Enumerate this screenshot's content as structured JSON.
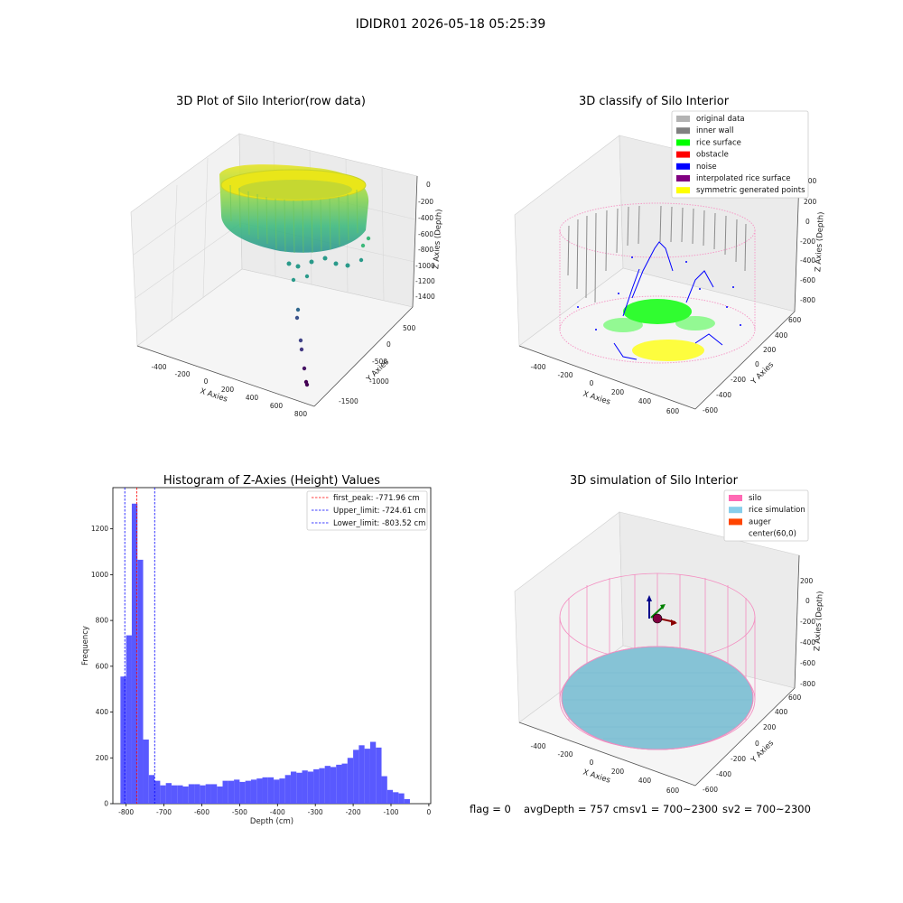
{
  "suptitle": "IDIDR01 2026-05-18 05:25:39",
  "panels": {
    "raw": {
      "title": "3D Plot of Silo Interior(row data)",
      "xlabel": "X Axies",
      "ylabel": "Y Axies",
      "zlabel": "Z Axies (Depth)",
      "xticks": [
        "-400",
        "-200",
        "0",
        "200",
        "400",
        "600",
        "800"
      ],
      "yticks": [
        "-1500",
        "-1000",
        "-500",
        "0",
        "500"
      ],
      "zticks": [
        "0",
        "-200",
        "-400",
        "-600",
        "-800",
        "-1000",
        "-1200",
        "-1400"
      ]
    },
    "classify": {
      "title": "3D classify of Silo Interior",
      "xlabel": "X Axies",
      "ylabel": "Y Axies",
      "zlabel": "Z Axies (Depth)",
      "xticks": [
        "-400",
        "-200",
        "0",
        "200",
        "400",
        "600"
      ],
      "yticks": [
        "-600",
        "-400",
        "-200",
        "0",
        "200",
        "400",
        "600"
      ],
      "zticks": [
        "400",
        "200",
        "0",
        "-200",
        "-400",
        "-600",
        "-800"
      ],
      "legend": [
        {
          "label": "original data",
          "color": "#b3b3b3"
        },
        {
          "label": "inner wall",
          "color": "#808080"
        },
        {
          "label": "rice surface",
          "color": "#00ff00"
        },
        {
          "label": "obstacle",
          "color": "#ff0000"
        },
        {
          "label": "noise",
          "color": "#0000ff"
        },
        {
          "label": "interpolated rice surface",
          "color": "#800080"
        },
        {
          "label": "symmetric generated points",
          "color": "#ffff00"
        }
      ]
    },
    "simulation": {
      "title": "3D simulation of Silo Interior",
      "xlabel": "X Axies",
      "ylabel": "Y Axies",
      "zlabel": "Z Axies (Depth)",
      "xticks": [
        "-400",
        "-200",
        "0",
        "200",
        "400",
        "600"
      ],
      "yticks": [
        "-600",
        "-400",
        "-200",
        "0",
        "200",
        "400",
        "600"
      ],
      "zticks": [
        "200",
        "0",
        "-200",
        "-400",
        "-600",
        "-800"
      ],
      "legend": [
        {
          "label": "silo",
          "color": "#ff69b4"
        },
        {
          "label": "rice simulation",
          "color": "#87ceeb"
        },
        {
          "label": "auger",
          "color": "#ff4500"
        },
        {
          "label": "center(60,0)",
          "color": "none"
        }
      ]
    }
  },
  "status_line": {
    "flag": "flag = 0",
    "avg_depth": "avgDepth = 757 cm",
    "sv1": "sv1 = 700~2300",
    "sv2": "sv2 = 700~2300"
  },
  "chart_data": [
    {
      "type": "histogram",
      "title": "Histogram of Z-Axies (Height) Values",
      "xlabel": "Depth (cm)",
      "ylabel": "Frequency",
      "xlim": [
        -835,
        5
      ],
      "ylim": [
        0,
        1380
      ],
      "xticks": [
        -800,
        -700,
        -600,
        -500,
        -400,
        -300,
        -200,
        -100,
        0
      ],
      "yticks": [
        0,
        200,
        400,
        600,
        800,
        1000,
        1200
      ],
      "bar_color": "#5050ff",
      "bin_start": -815,
      "bin_width": 15.0,
      "values": [
        555,
        735,
        1310,
        1065,
        280,
        125,
        100,
        80,
        90,
        80,
        80,
        75,
        85,
        85,
        80,
        85,
        85,
        75,
        100,
        100,
        105,
        95,
        100,
        105,
        110,
        115,
        115,
        105,
        110,
        125,
        140,
        135,
        145,
        140,
        150,
        155,
        165,
        160,
        170,
        175,
        200,
        235,
        255,
        240,
        270,
        245,
        120,
        60,
        50,
        45,
        20
      ],
      "vlines": [
        {
          "label": "first_peak: -771.96 cm",
          "x": -771.96,
          "color": "#ff0000"
        },
        {
          "label": "Upper_limit: -724.61 cm",
          "x": -724.61,
          "color": "#0000ff"
        },
        {
          "label": "Lower_limit: -803.52 cm",
          "x": -803.52,
          "color": "#0000ff"
        }
      ],
      "legend_position": "top-right"
    }
  ]
}
